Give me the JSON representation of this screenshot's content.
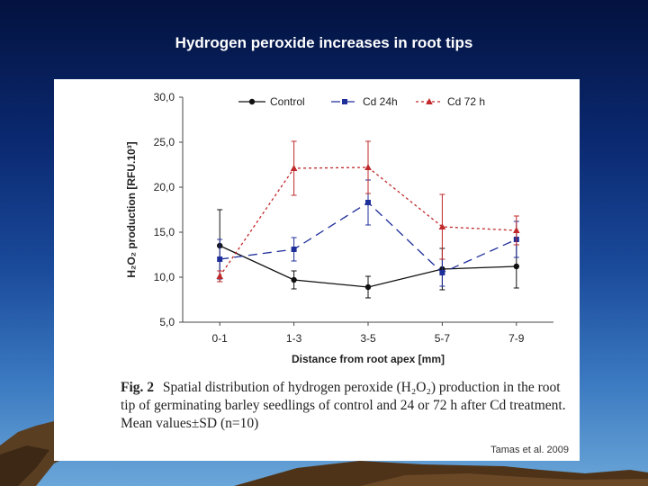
{
  "slide": {
    "title": "Hydrogen peroxide increases in root tips"
  },
  "figure": {
    "caption_label": "Fig. 2",
    "caption_text": "Spatial distribution of hydrogen peroxide (H₂O₂) production in the root tip of germinating barley seedlings of control and 24 or 72 h after Cd treatment. Mean values±SD (n=10)",
    "credit": "Tamas et al. 2009"
  },
  "colors": {
    "control": "#111111",
    "cd24": "#1f2f9a",
    "cd72": "#c0282a"
  },
  "chart_data": {
    "type": "line",
    "categories": [
      "0-1",
      "1-3",
      "3-5",
      "5-7",
      "7-9"
    ],
    "ylim": [
      5.0,
      30.0
    ],
    "yticks": [
      "5,0",
      "10,0",
      "15,0",
      "20,0",
      "25,0",
      "30,0"
    ],
    "ytick_values": [
      5,
      10,
      15,
      20,
      25,
      30
    ],
    "xlabel": "Distance from root apex [mm]",
    "ylabel": "H₂O₂ production [RFU.10³]",
    "grid": false,
    "legend_position": "top",
    "series": [
      {
        "name": "Control",
        "values": [
          13.5,
          9.7,
          8.9,
          10.9,
          11.2
        ],
        "errors": [
          4.0,
          1.0,
          1.2,
          2.3,
          2.4
        ],
        "marker": "circle",
        "dash": "solid"
      },
      {
        "name": "Cd 24h",
        "values": [
          12.0,
          13.1,
          18.3,
          10.5,
          14.2
        ],
        "errors": [
          2.2,
          1.3,
          2.5,
          1.5,
          2.0
        ],
        "marker": "square",
        "dash": "dashed"
      },
      {
        "name": "Cd 72 h",
        "values": [
          10.1,
          22.1,
          22.2,
          15.6,
          15.2
        ],
        "errors": [
          0.6,
          3.0,
          2.9,
          3.6,
          1.6
        ],
        "marker": "triangle",
        "dash": "dotted"
      }
    ]
  }
}
